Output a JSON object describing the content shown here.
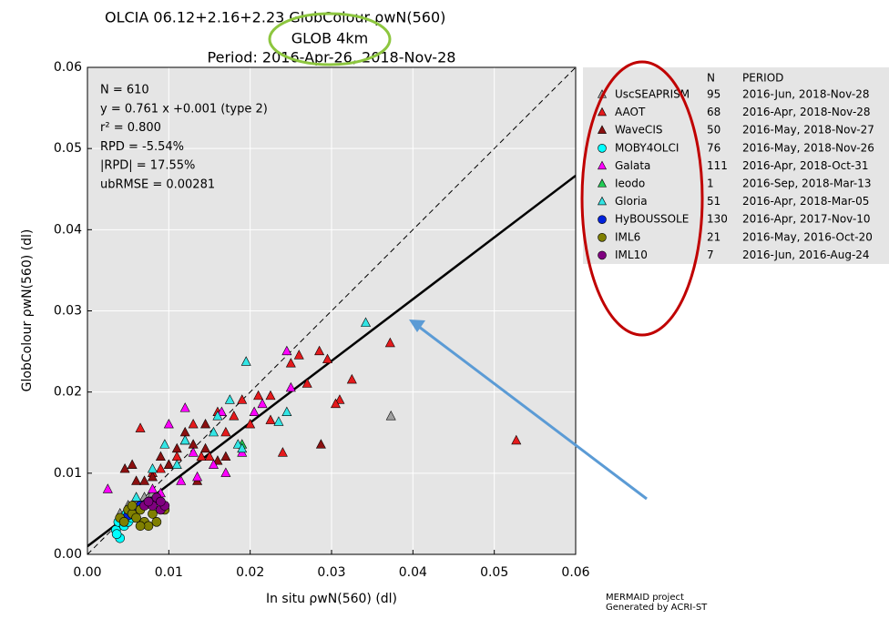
{
  "chart_data": {
    "type": "scatter",
    "title": "OLCIA 06.12+2.16+2.23  GlobColour ρwN(560)",
    "subtitle": "GLOB 4km",
    "period": "Period: 2016-Apr-26, 2018-Nov-28",
    "x_label": "In situ ρwN(560) (dl)",
    "y_label": "GlobColour ρwN(560) (dl)",
    "xlim": [
      0,
      0.06
    ],
    "ylim": [
      0,
      0.06
    ],
    "xticks": [
      {
        "value": 0,
        "label": "0.00"
      },
      {
        "value": 0.01,
        "label": "0.01"
      },
      {
        "value": 0.02,
        "label": "0.02"
      },
      {
        "value": 0.03,
        "label": "0.03"
      },
      {
        "value": 0.04,
        "label": "0.04"
      },
      {
        "value": 0.05,
        "label": "0.05"
      },
      {
        "value": 0.06,
        "label": "0.06"
      }
    ],
    "yticks": [
      {
        "value": 0,
        "label": "0.00"
      },
      {
        "value": 0.01,
        "label": "0.01"
      },
      {
        "value": 0.02,
        "label": "0.02"
      },
      {
        "value": 0.03,
        "label": "0.03"
      },
      {
        "value": 0.04,
        "label": "0.04"
      },
      {
        "value": 0.05,
        "label": "0.05"
      },
      {
        "value": 0.06,
        "label": "0.06"
      }
    ],
    "grid": true,
    "stats": [
      "N = 610",
      "y  = 0.761 x +0.001 (type 2)",
      "r² = 0.800",
      "RPD  = -5.54%",
      "|RPD| = 17.55%",
      "ubRMSE = 0.00281"
    ],
    "fit": {
      "slope": 0.761,
      "intercept": 0.001
    },
    "legend_headers": [
      "N",
      "PERIOD"
    ],
    "series": [
      {
        "name": "UscSEAPRISM",
        "n": 95,
        "period": "2016-Jun, 2018-Nov-28",
        "color": "#a0a0a0",
        "marker": "triangle",
        "x": [
          0.0373,
          0.004,
          0.005,
          0.006,
          0.007,
          0.008
        ],
        "y": [
          0.017,
          0.005,
          0.006,
          0.006,
          0.007,
          0.0075
        ]
      },
      {
        "name": "AAOT",
        "n": 68,
        "period": "2016-Apr, 2018-Nov-28",
        "color": "#e41a1c",
        "marker": "triangle",
        "x": [
          0.0372,
          0.0527,
          0.0325,
          0.031,
          0.0305,
          0.0295,
          0.0285,
          0.027,
          0.025,
          0.0225,
          0.024,
          0.021,
          0.019,
          0.016,
          0.013,
          0.012,
          0.011,
          0.01,
          0.009,
          0.008,
          0.0065,
          0.014,
          0.017,
          0.02,
          0.0225,
          0.026,
          0.015,
          0.018
        ],
        "y": [
          0.026,
          0.014,
          0.0215,
          0.019,
          0.0185,
          0.024,
          0.025,
          0.021,
          0.0235,
          0.0195,
          0.0125,
          0.0195,
          0.019,
          0.0175,
          0.016,
          0.014,
          0.012,
          0.011,
          0.0105,
          0.01,
          0.0155,
          0.012,
          0.015,
          0.016,
          0.0165,
          0.0245,
          0.012,
          0.017
        ]
      },
      {
        "name": "WaveCIS",
        "n": 50,
        "period": "2016-May, 2018-Nov-27",
        "color": "#8b1010",
        "marker": "triangle",
        "x": [
          0.0287,
          0.0046,
          0.0055,
          0.006,
          0.007,
          0.008,
          0.009,
          0.01,
          0.011,
          0.012,
          0.013,
          0.0145,
          0.016,
          0.017,
          0.0135,
          0.0145
        ],
        "y": [
          0.0135,
          0.0105,
          0.011,
          0.009,
          0.009,
          0.0095,
          0.012,
          0.011,
          0.013,
          0.015,
          0.0135,
          0.016,
          0.0115,
          0.012,
          0.009,
          0.013
        ]
      },
      {
        "name": "MOBY4OLCI",
        "n": 76,
        "period": "2016-May, 2018-Nov-26",
        "color": "#00ffff",
        "marker": "circle",
        "x": [
          0.0035,
          0.004,
          0.0038,
          0.0045,
          0.005,
          0.0042,
          0.0036,
          0.0048,
          0.0055
        ],
        "y": [
          0.003,
          0.002,
          0.004,
          0.0035,
          0.004,
          0.0045,
          0.0025,
          0.005,
          0.0045
        ]
      },
      {
        "name": "Galata",
        "n": 111,
        "period": "2016-Apr, 2018-Oct-31",
        "color": "#ff00ff",
        "marker": "triangle",
        "x": [
          0.0025,
          0.006,
          0.009,
          0.0115,
          0.013,
          0.0135,
          0.0155,
          0.017,
          0.019,
          0.0205,
          0.0215,
          0.0245,
          0.025,
          0.01,
          0.012,
          0.0165,
          0.008
        ],
        "y": [
          0.008,
          0.0055,
          0.0075,
          0.009,
          0.0125,
          0.0095,
          0.011,
          0.01,
          0.0125,
          0.0175,
          0.0185,
          0.025,
          0.0205,
          0.016,
          0.018,
          0.0175,
          0.008
        ]
      },
      {
        "name": "Ieodo",
        "n": 1,
        "period": "2016-Sep, 2018-Mar-13",
        "color": "#22cc55",
        "marker": "triangle",
        "x": [
          0.019
        ],
        "y": [
          0.0135
        ]
      },
      {
        "name": "Gloria",
        "n": 51,
        "period": "2016-Apr, 2018-Mar-05",
        "color": "#33e5e5",
        "marker": "triangle",
        "x": [
          0.0342,
          0.0195,
          0.0235,
          0.0245,
          0.0175,
          0.016,
          0.012,
          0.0095,
          0.008,
          0.006,
          0.0185,
          0.0155,
          0.019,
          0.011
        ],
        "y": [
          0.0285,
          0.0237,
          0.0163,
          0.0175,
          0.019,
          0.017,
          0.014,
          0.0135,
          0.0105,
          0.007,
          0.0135,
          0.015,
          0.013,
          0.011
        ]
      },
      {
        "name": "HyBOUSSOLE",
        "n": 130,
        "period": "2016-Apr, 2017-Nov-10",
        "color": "#0022dd",
        "marker": "circle",
        "x": [
          0.005,
          0.006,
          0.0065,
          0.0072,
          0.008
        ],
        "y": [
          0.0048,
          0.0055,
          0.006,
          0.0062,
          0.0065
        ]
      },
      {
        "name": "IML6",
        "n": 21,
        "period": "2016-May, 2016-Oct-20",
        "color": "#808000",
        "marker": "circle",
        "x": [
          0.004,
          0.005,
          0.0055,
          0.006,
          0.0065,
          0.007,
          0.0075,
          0.008,
          0.0085,
          0.0095,
          0.0065,
          0.0045,
          0.0055
        ],
        "y": [
          0.0045,
          0.0055,
          0.005,
          0.0045,
          0.0055,
          0.004,
          0.0035,
          0.005,
          0.004,
          0.0055,
          0.0035,
          0.004,
          0.006
        ]
      },
      {
        "name": "IML10",
        "n": 7,
        "period": "2016-Jun, 2016-Aug-24",
        "color": "#800080",
        "marker": "circle",
        "x": [
          0.007,
          0.008,
          0.009,
          0.0075,
          0.0085,
          0.0095,
          0.009
        ],
        "y": [
          0.006,
          0.006,
          0.0055,
          0.0065,
          0.007,
          0.006,
          0.0065
        ]
      }
    ],
    "footer": [
      "MERMAID project",
      "Generated by ACRI-ST"
    ]
  }
}
